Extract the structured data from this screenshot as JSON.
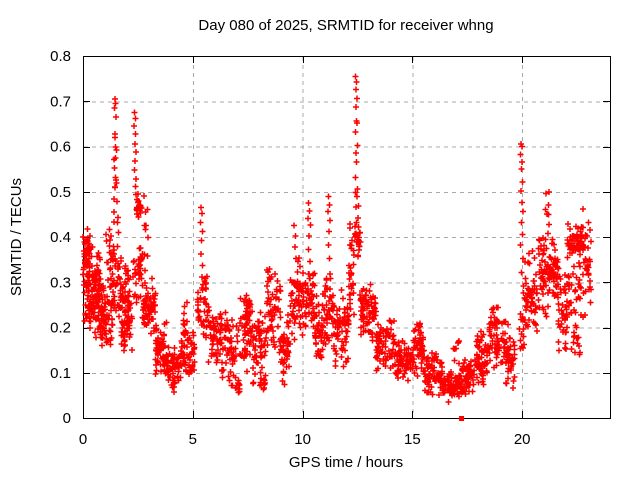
{
  "chart_data": {
    "type": "scatter",
    "title": "Day 080 of 2025, SRMTID for receiver whng",
    "xlabel": "GPS time / hours",
    "ylabel": "SRMTID / TECUs",
    "xlim": [
      0,
      24
    ],
    "ylim": [
      0,
      0.8
    ],
    "xticks": [
      0,
      5,
      10,
      15,
      20
    ],
    "yticks": [
      0,
      0.1,
      0.2,
      0.3,
      0.4,
      0.5,
      0.6,
      0.7,
      0.8
    ],
    "grid": true,
    "legend": "none",
    "marker": "plus",
    "marker_color": "#ff0000",
    "grid_color": "#a8a8a8",
    "axis_color": "#000000",
    "background": "#ffffff",
    "seed": 7,
    "square_marker": {
      "x": 17.24,
      "y": 0.0
    },
    "notable_points": [
      [
        1.45,
        0.705
      ],
      [
        1.48,
        0.695
      ],
      [
        1.44,
        0.685
      ],
      [
        1.5,
        0.665
      ],
      [
        1.46,
        0.628
      ],
      [
        1.447,
        0.62
      ],
      [
        1.52,
        0.592
      ],
      [
        1.47,
        0.575
      ],
      [
        1.43,
        0.552
      ],
      [
        1.49,
        0.532
      ],
      [
        1.455,
        0.51
      ],
      [
        1.55,
        0.478
      ],
      [
        1.41,
        0.455
      ],
      [
        1.58,
        0.432
      ],
      [
        1.62,
        0.41
      ],
      [
        2.35,
        0.675
      ],
      [
        2.38,
        0.662
      ],
      [
        2.33,
        0.645
      ],
      [
        2.4,
        0.628
      ],
      [
        2.36,
        0.605
      ],
      [
        2.42,
        0.588
      ],
      [
        2.37,
        0.568
      ],
      [
        2.345,
        0.548
      ],
      [
        2.41,
        0.528
      ],
      [
        2.39,
        0.512
      ],
      [
        5.38,
        0.465
      ],
      [
        5.42,
        0.452
      ],
      [
        5.35,
        0.432
      ],
      [
        5.44,
        0.412
      ],
      [
        5.4,
        0.392
      ],
      [
        5.37,
        0.362
      ],
      [
        5.45,
        0.337
      ],
      [
        5.41,
        0.312
      ],
      [
        9.62,
        0.425
      ],
      [
        9.68,
        0.402
      ],
      [
        9.65,
        0.378
      ],
      [
        9.7,
        0.352
      ],
      [
        10.28,
        0.475
      ],
      [
        10.32,
        0.457
      ],
      [
        10.25,
        0.441
      ],
      [
        10.35,
        0.426
      ],
      [
        10.3,
        0.402
      ],
      [
        10.27,
        0.372
      ],
      [
        10.33,
        0.346
      ],
      [
        10.29,
        0.318
      ],
      [
        11.18,
        0.49
      ],
      [
        11.22,
        0.471
      ],
      [
        11.15,
        0.456
      ],
      [
        11.25,
        0.436
      ],
      [
        11.2,
        0.412
      ],
      [
        11.17,
        0.382
      ],
      [
        11.23,
        0.352
      ],
      [
        12.42,
        0.755
      ],
      [
        12.46,
        0.742
      ],
      [
        12.44,
        0.726
      ],
      [
        12.48,
        0.706
      ],
      [
        12.43,
        0.687
      ],
      [
        12.45,
        0.656
      ],
      [
        12.472,
        0.652
      ],
      [
        12.41,
        0.632
      ],
      [
        12.49,
        0.602
      ],
      [
        12.44,
        0.586
      ],
      [
        12.462,
        0.566
      ],
      [
        12.42,
        0.532
      ],
      [
        12.5,
        0.506
      ],
      [
        12.47,
        0.49
      ],
      [
        12.435,
        0.466
      ],
      [
        12.52,
        0.442
      ],
      [
        12.55,
        0.422
      ],
      [
        19.95,
        0.606
      ],
      [
        19.985,
        0.6
      ],
      [
        19.92,
        0.582
      ],
      [
        20.0,
        0.566
      ],
      [
        19.96,
        0.55
      ],
      [
        20.02,
        0.522
      ],
      [
        19.94,
        0.502
      ],
      [
        19.99,
        0.476
      ],
      [
        20.04,
        0.456
      ],
      [
        19.97,
        0.432
      ],
      [
        20.01,
        0.406
      ],
      [
        19.93,
        0.382
      ],
      [
        20.03,
        0.352
      ],
      [
        19.98,
        0.322
      ],
      [
        20.05,
        0.292
      ],
      [
        22.78,
        0.462
      ],
      [
        23.02,
        0.432
      ],
      [
        23.08,
        0.415
      ],
      [
        22.95,
        0.402
      ]
    ],
    "clusters": [
      [
        0.0,
        0.35,
        0.2,
        0.425,
        55,
        "g"
      ],
      [
        0.02,
        0.3,
        0.3,
        0.405,
        25,
        "g"
      ],
      [
        0.25,
        0.8,
        0.27,
        0.385,
        30,
        "g"
      ],
      [
        0.3,
        0.9,
        0.16,
        0.33,
        80,
        "g"
      ],
      [
        0.8,
        1.35,
        0.15,
        0.31,
        60,
        "g"
      ],
      [
        1.05,
        1.45,
        0.29,
        0.425,
        22,
        "g"
      ],
      [
        1.38,
        1.62,
        0.42,
        0.6,
        8,
        "u"
      ],
      [
        1.35,
        1.75,
        0.17,
        0.4,
        40,
        "g"
      ],
      [
        1.75,
        2.25,
        0.13,
        0.3,
        65,
        "g"
      ],
      [
        1.9,
        2.15,
        0.295,
        0.345,
        10,
        "u"
      ],
      [
        2.42,
        2.68,
        0.435,
        0.5,
        26,
        "g"
      ],
      [
        2.25,
        2.75,
        0.22,
        0.43,
        36,
        "g"
      ],
      [
        2.78,
        2.95,
        0.32,
        0.5,
        10,
        "u"
      ],
      [
        2.7,
        3.3,
        0.17,
        0.32,
        62,
        "g"
      ],
      [
        3.3,
        3.8,
        0.09,
        0.22,
        55,
        "g"
      ],
      [
        3.8,
        4.4,
        0.055,
        0.18,
        55,
        "g"
      ],
      [
        4.4,
        5.1,
        0.07,
        0.2,
        55,
        "g"
      ],
      [
        4.55,
        4.78,
        0.15,
        0.26,
        14,
        "u"
      ],
      [
        5.2,
        5.7,
        0.17,
        0.32,
        40,
        "g"
      ],
      [
        5.7,
        6.3,
        0.12,
        0.27,
        55,
        "g"
      ],
      [
        6.3,
        7.15,
        0.06,
        0.25,
        62,
        "g"
      ],
      [
        6.85,
        7.15,
        0.045,
        0.1,
        12,
        "g"
      ],
      [
        7.15,
        7.7,
        0.1,
        0.285,
        48,
        "g"
      ],
      [
        7.3,
        7.65,
        0.21,
        0.28,
        18,
        "g"
      ],
      [
        7.7,
        8.35,
        0.075,
        0.25,
        55,
        "g"
      ],
      [
        8.05,
        8.35,
        0.05,
        0.11,
        10,
        "g"
      ],
      [
        8.35,
        9.0,
        0.13,
        0.34,
        60,
        "g"
      ],
      [
        9.0,
        9.45,
        0.065,
        0.25,
        45,
        "g"
      ],
      [
        9.45,
        10.05,
        0.15,
        0.37,
        60,
        "g"
      ],
      [
        10.1,
        10.55,
        0.18,
        0.35,
        45,
        "g"
      ],
      [
        10.55,
        11.0,
        0.11,
        0.28,
        48,
        "g"
      ],
      [
        11.0,
        11.4,
        0.15,
        0.33,
        40,
        "g"
      ],
      [
        11.4,
        12.1,
        0.1,
        0.3,
        68,
        "g"
      ],
      [
        12.1,
        12.35,
        0.2,
        0.45,
        28,
        "g"
      ],
      [
        12.38,
        12.58,
        0.33,
        0.5,
        12,
        "u"
      ],
      [
        12.38,
        12.65,
        0.375,
        0.42,
        12,
        "g"
      ],
      [
        12.6,
        13.35,
        0.16,
        0.31,
        72,
        "g"
      ],
      [
        13.35,
        14.2,
        0.1,
        0.225,
        70,
        "g"
      ],
      [
        14.2,
        15.05,
        0.075,
        0.185,
        70,
        "g"
      ],
      [
        15.05,
        15.55,
        0.09,
        0.215,
        45,
        "g"
      ],
      [
        15.3,
        15.42,
        0.13,
        0.21,
        10,
        "u"
      ],
      [
        15.55,
        16.35,
        0.045,
        0.15,
        70,
        "g"
      ],
      [
        16.35,
        17.25,
        0.03,
        0.115,
        80,
        "g"
      ],
      [
        16.85,
        17.15,
        0.115,
        0.175,
        8,
        "u"
      ],
      [
        17.25,
        17.85,
        0.04,
        0.135,
        60,
        "g"
      ],
      [
        17.85,
        18.45,
        0.07,
        0.2,
        60,
        "g"
      ],
      [
        18.45,
        19.25,
        0.1,
        0.255,
        70,
        "g"
      ],
      [
        19.25,
        19.65,
        0.05,
        0.22,
        40,
        "g"
      ],
      [
        19.85,
        20.1,
        0.13,
        0.25,
        14,
        "g"
      ],
      [
        20.05,
        20.7,
        0.17,
        0.375,
        60,
        "g"
      ],
      [
        20.7,
        21.2,
        0.22,
        0.43,
        45,
        "g"
      ],
      [
        21.05,
        21.25,
        0.42,
        0.5,
        7,
        "u"
      ],
      [
        21.2,
        21.65,
        0.25,
        0.4,
        45,
        "g"
      ],
      [
        21.65,
        22.05,
        0.12,
        0.33,
        38,
        "g"
      ],
      [
        22.05,
        22.9,
        0.33,
        0.435,
        70,
        "g"
      ],
      [
        22.05,
        22.9,
        0.2,
        0.33,
        30,
        "g"
      ],
      [
        22.25,
        22.65,
        0.13,
        0.21,
        15,
        "g"
      ],
      [
        22.9,
        23.15,
        0.25,
        0.43,
        15,
        "g"
      ]
    ]
  }
}
